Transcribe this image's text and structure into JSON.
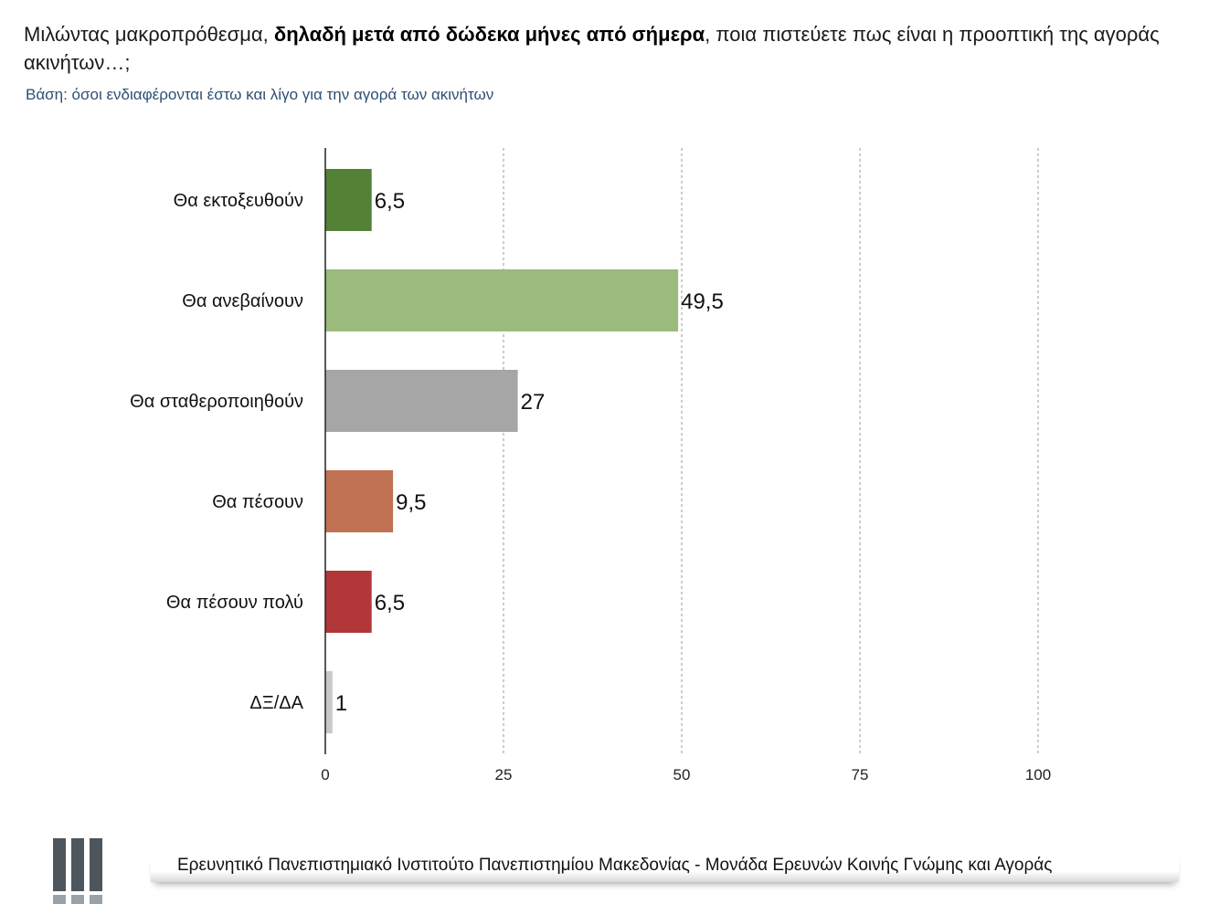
{
  "header": {
    "title_prefix": "Μιλώντας μακροπρόθεσμα, ",
    "title_bold": "δηλαδή μετά από δώδεκα μήνες από σήμερα",
    "title_suffix": ", ποια πιστεύετε πως είναι η προοπτική της αγοράς ακινήτων…;",
    "subtitle": "Βάση: όσοι ενδιαφέρονται έστω και λίγο για την αγορά των ακινήτων"
  },
  "chart_data": {
    "type": "bar",
    "orientation": "horizontal",
    "categories": [
      "Θα εκτοξευθούν",
      "Θα ανεβαίνουν",
      "Θα σταθεροποιηθούν",
      "Θα πέσουν",
      "Θα πέσουν πολύ",
      "ΔΞ/ΔΑ"
    ],
    "values": [
      6.5,
      49.5,
      27,
      9.5,
      6.5,
      1
    ],
    "value_labels": [
      "6,5",
      "49,5",
      "27",
      "9,5",
      "6,5",
      "1"
    ],
    "colors": [
      "#538135",
      "#9bbb7c",
      "#a6a6a6",
      "#c07252",
      "#b13738",
      "#c8c8c8"
    ],
    "xlim": [
      0,
      100
    ],
    "xticks": [
      0,
      25,
      50,
      75,
      100
    ],
    "grid": "vertical dashed",
    "legend": "none"
  },
  "footer": {
    "text": "Ερευνητικό Πανεπιστημιακό Ινστιτούτο Πανεπιστημίου Μακεδονίας - Μονάδα Ερευνών Κοινής Γνώμης και Αγοράς"
  }
}
